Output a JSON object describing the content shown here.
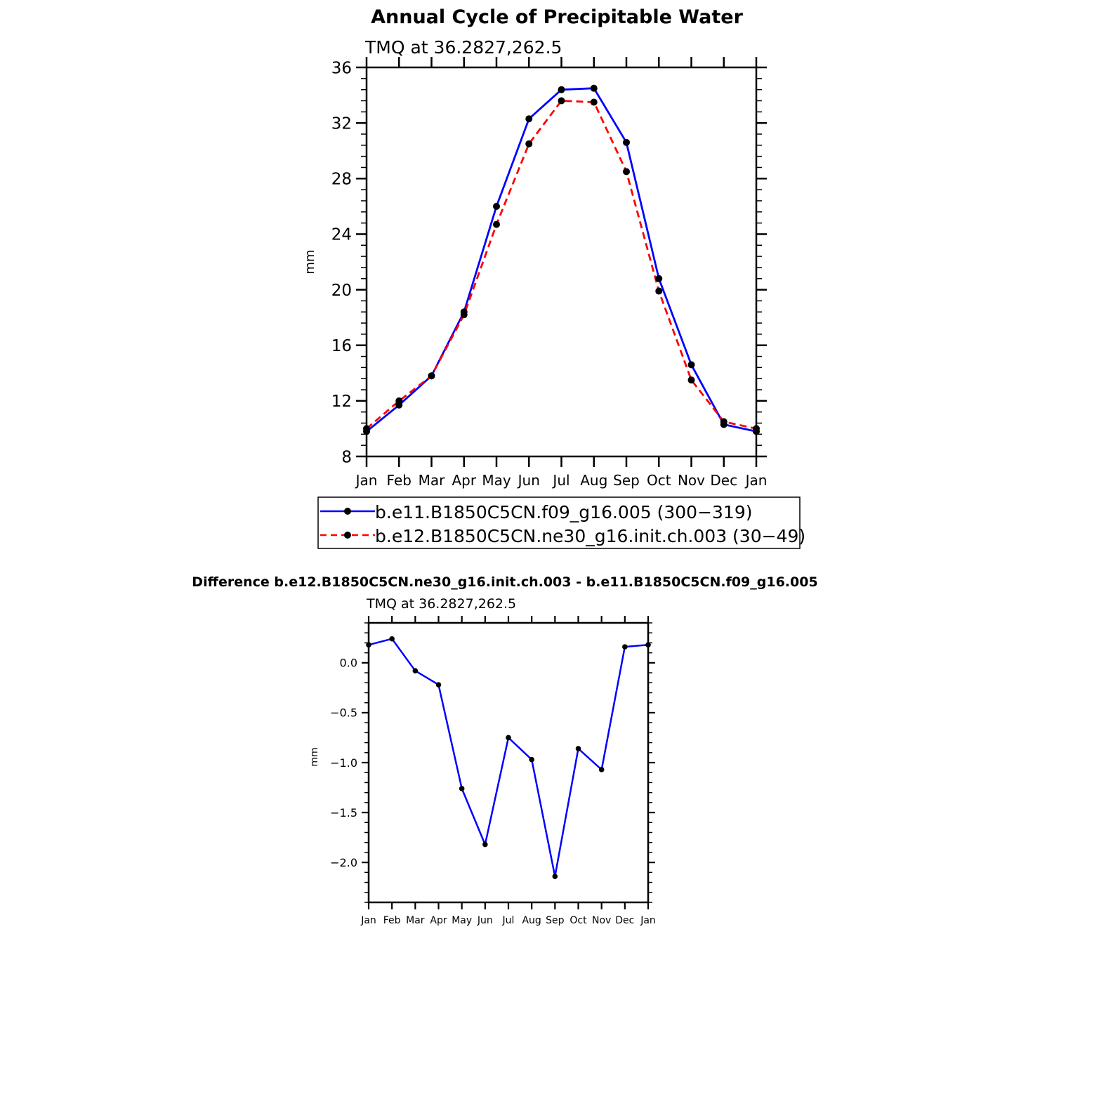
{
  "chart_data": [
    {
      "type": "line",
      "title": "Annual Cycle of Precipitable Water",
      "subtitle": "TMQ at 36.2827,262.5",
      "ylabel": "mm",
      "xlabel": "",
      "categories": [
        "Jan",
        "Feb",
        "Mar",
        "Apr",
        "May",
        "Jun",
        "Jul",
        "Aug",
        "Sep",
        "Oct",
        "Nov",
        "Dec",
        "Jan"
      ],
      "ylim": [
        8,
        36
      ],
      "yticks": [
        "8",
        "12",
        "16",
        "20",
        "24",
        "28",
        "32",
        "36"
      ],
      "grid": false,
      "legend_position": "below",
      "series": [
        {
          "name": "b.e11.B1850C5CN.f09_g16.005 (300−319)",
          "color": "#0000ff",
          "dash": "solid",
          "values": [
            9.8,
            11.7,
            13.8,
            18.4,
            26.0,
            32.3,
            34.4,
            34.5,
            30.6,
            20.8,
            14.6,
            10.3,
            9.8
          ]
        },
        {
          "name": "b.e12.B1850C5CN.ne30_g16.init.ch.003 (30−49)",
          "color": "#ff0000",
          "dash": "dashed",
          "values": [
            10.0,
            12.0,
            13.8,
            18.2,
            24.7,
            30.5,
            33.6,
            33.5,
            28.5,
            19.9,
            13.5,
            10.5,
            10.0
          ]
        }
      ]
    },
    {
      "type": "line",
      "title": "Difference b.e12.B1850C5CN.ne30_g16.init.ch.003 - b.e11.B1850C5CN.f09_g16.005",
      "subtitle": "TMQ at 36.2827,262.5",
      "ylabel": "mm",
      "xlabel": "",
      "categories": [
        "Jan",
        "Feb",
        "Mar",
        "Apr",
        "May",
        "Jun",
        "Jul",
        "Aug",
        "Sep",
        "Oct",
        "Nov",
        "Dec",
        "Jan"
      ],
      "ylim": [
        -2.4,
        0.4
      ],
      "yticks": [
        "0.0",
        "−0.5",
        "−1.0",
        "−1.5",
        "−2.0"
      ],
      "grid": false,
      "series": [
        {
          "color": "#0000ff",
          "dash": "solid",
          "values": [
            0.18,
            0.24,
            -0.08,
            -0.22,
            -1.26,
            -1.82,
            -0.75,
            -0.97,
            -2.14,
            -0.86,
            -1.07,
            0.16,
            0.18
          ]
        }
      ]
    }
  ]
}
